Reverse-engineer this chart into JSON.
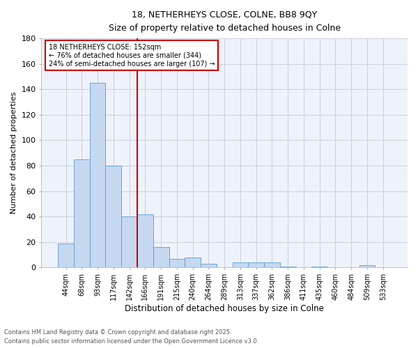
{
  "title_line1": "18, NETHERHEYS CLOSE, COLNE, BB8 9QY",
  "title_line2": "Size of property relative to detached houses in Colne",
  "xlabel": "Distribution of detached houses by size in Colne",
  "ylabel": "Number of detached properties",
  "bar_labels": [
    "44sqm",
    "68sqm",
    "93sqm",
    "117sqm",
    "142sqm",
    "166sqm",
    "191sqm",
    "215sqm",
    "240sqm",
    "264sqm",
    "289sqm",
    "313sqm",
    "337sqm",
    "362sqm",
    "386sqm",
    "411sqm",
    "435sqm",
    "460sqm",
    "484sqm",
    "509sqm",
    "533sqm"
  ],
  "bar_values": [
    19,
    85,
    145,
    80,
    40,
    42,
    16,
    7,
    8,
    3,
    0,
    4,
    4,
    4,
    1,
    0,
    1,
    0,
    0,
    2,
    0
  ],
  "bar_color": "#c5d8f0",
  "bar_edge_color": "#5b9bd5",
  "vline_x_index": 4,
  "vline_color": "#cc0000",
  "annotation_text": "18 NETHERHEYS CLOSE: 152sqm\n← 76% of detached houses are smaller (344)\n24% of semi-detached houses are larger (107) →",
  "annotation_box_color": "#ffffff",
  "annotation_box_edge": "#cc0000",
  "ylim": [
    0,
    180
  ],
  "yticks": [
    0,
    20,
    40,
    60,
    80,
    100,
    120,
    140,
    160,
    180
  ],
  "footer_line1": "Contains HM Land Registry data © Crown copyright and database right 2025.",
  "footer_line2": "Contains public sector information licensed under the Open Government Licence v3.0.",
  "bg_color": "#ffffff",
  "plot_bg_color": "#eef2fa",
  "grid_color": "#c8d0e0"
}
